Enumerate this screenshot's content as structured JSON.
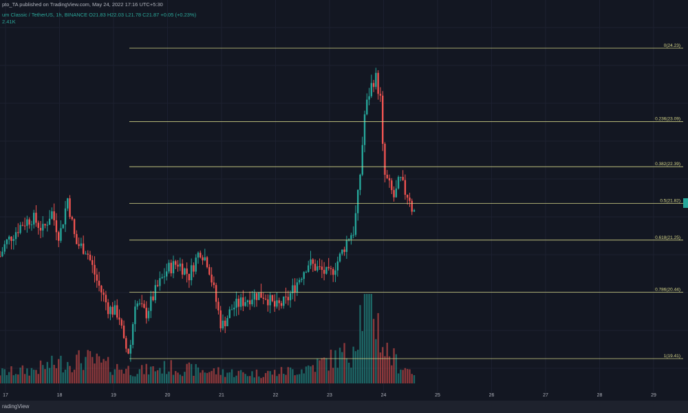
{
  "header": {
    "published": "pto_TA published on TradingView.com, May 24, 2022 17:16 UTC+5:30",
    "symbol_line": "um Classic / TetherUS, 1h, BINANCE  O21.83 H22.03 L21.78 C21.87 +0.05 (+0.23%)",
    "volume_line": "2.41K"
  },
  "footer": {
    "logo_text": "radingView"
  },
  "colors": {
    "background": "#131722",
    "up": "#26a69a",
    "down": "#ef5350",
    "fib": "#d8d88a",
    "footer_bg": "#1e222d"
  },
  "chart_data": {
    "type": "candlestick",
    "x_ticks": [
      "17",
      "18",
      "19",
      "20",
      "21",
      "22",
      "23",
      "24",
      "25",
      "26",
      "27",
      "28",
      "29"
    ],
    "fib_levels": [
      {
        "ratio": "0",
        "price": 24.23,
        "label": "0(24.23)"
      },
      {
        "ratio": "0.236",
        "price": 23.09,
        "label": "0.236(23.09)"
      },
      {
        "ratio": "0.382",
        "price": 22.39,
        "label": "0.382(22.39)"
      },
      {
        "ratio": "0.5",
        "price": 21.82,
        "label": "0.5(21.82)"
      },
      {
        "ratio": "0.618",
        "price": 21.25,
        "label": "0.618(21.25)"
      },
      {
        "ratio": "0.786",
        "price": 20.44,
        "label": "0.786(20.44)"
      },
      {
        "ratio": "1",
        "price": 19.41,
        "label": "1(19.41)"
      }
    ],
    "price_path": [
      [
        16.9,
        21.0
      ],
      [
        17.0,
        21.2
      ],
      [
        17.3,
        21.5
      ],
      [
        17.5,
        21.6
      ],
      [
        17.7,
        21.4
      ],
      [
        17.85,
        21.7
      ],
      [
        18.0,
        21.3
      ],
      [
        18.15,
        21.9
      ],
      [
        18.3,
        21.2
      ],
      [
        18.5,
        21.1
      ],
      [
        18.7,
        20.6
      ],
      [
        18.9,
        20.2
      ],
      [
        19.1,
        20.1
      ],
      [
        19.2,
        19.6
      ],
      [
        19.3,
        19.5
      ],
      [
        19.4,
        20.3
      ],
      [
        19.6,
        20.1
      ],
      [
        19.8,
        20.5
      ],
      [
        20.0,
        20.8
      ],
      [
        20.2,
        20.9
      ],
      [
        20.4,
        20.7
      ],
      [
        20.6,
        21.1
      ],
      [
        20.75,
        20.9
      ],
      [
        20.9,
        20.3
      ],
      [
        21.0,
        19.9
      ],
      [
        21.2,
        20.2
      ],
      [
        21.4,
        20.3
      ],
      [
        21.6,
        20.4
      ],
      [
        21.8,
        20.4
      ],
      [
        22.0,
        20.2
      ],
      [
        22.2,
        20.3
      ],
      [
        22.4,
        20.6
      ],
      [
        22.6,
        20.9
      ],
      [
        22.8,
        20.8
      ],
      [
        23.0,
        20.7
      ],
      [
        23.2,
        21.0
      ],
      [
        23.35,
        21.3
      ],
      [
        23.45,
        21.4
      ],
      [
        23.55,
        22.1
      ],
      [
        23.65,
        23.2
      ],
      [
        23.75,
        23.6
      ],
      [
        23.85,
        23.8
      ],
      [
        23.95,
        23.4
      ],
      [
        24.0,
        22.3
      ],
      [
        24.1,
        22.1
      ],
      [
        24.2,
        21.9
      ],
      [
        24.3,
        22.2
      ],
      [
        24.4,
        22.0
      ],
      [
        24.5,
        21.9
      ],
      [
        24.55,
        21.6
      ],
      [
        24.6,
        21.87
      ]
    ],
    "volume_path": [
      [
        16.9,
        1.2
      ],
      [
        17.5,
        1.5
      ],
      [
        18.0,
        2.3
      ],
      [
        18.5,
        2.7
      ],
      [
        19.0,
        1.8
      ],
      [
        19.5,
        1.4
      ],
      [
        20.0,
        1.8
      ],
      [
        20.5,
        1.5
      ],
      [
        21.0,
        1.3
      ],
      [
        21.5,
        1.1
      ],
      [
        22.0,
        1.2
      ],
      [
        22.5,
        1.6
      ],
      [
        23.0,
        2.6
      ],
      [
        23.4,
        3.5
      ],
      [
        23.6,
        8.5
      ],
      [
        23.8,
        9.0
      ],
      [
        24.0,
        4.0
      ],
      [
        24.3,
        2.0
      ],
      [
        24.6,
        1.2
      ]
    ],
    "volume_max": 10
  }
}
